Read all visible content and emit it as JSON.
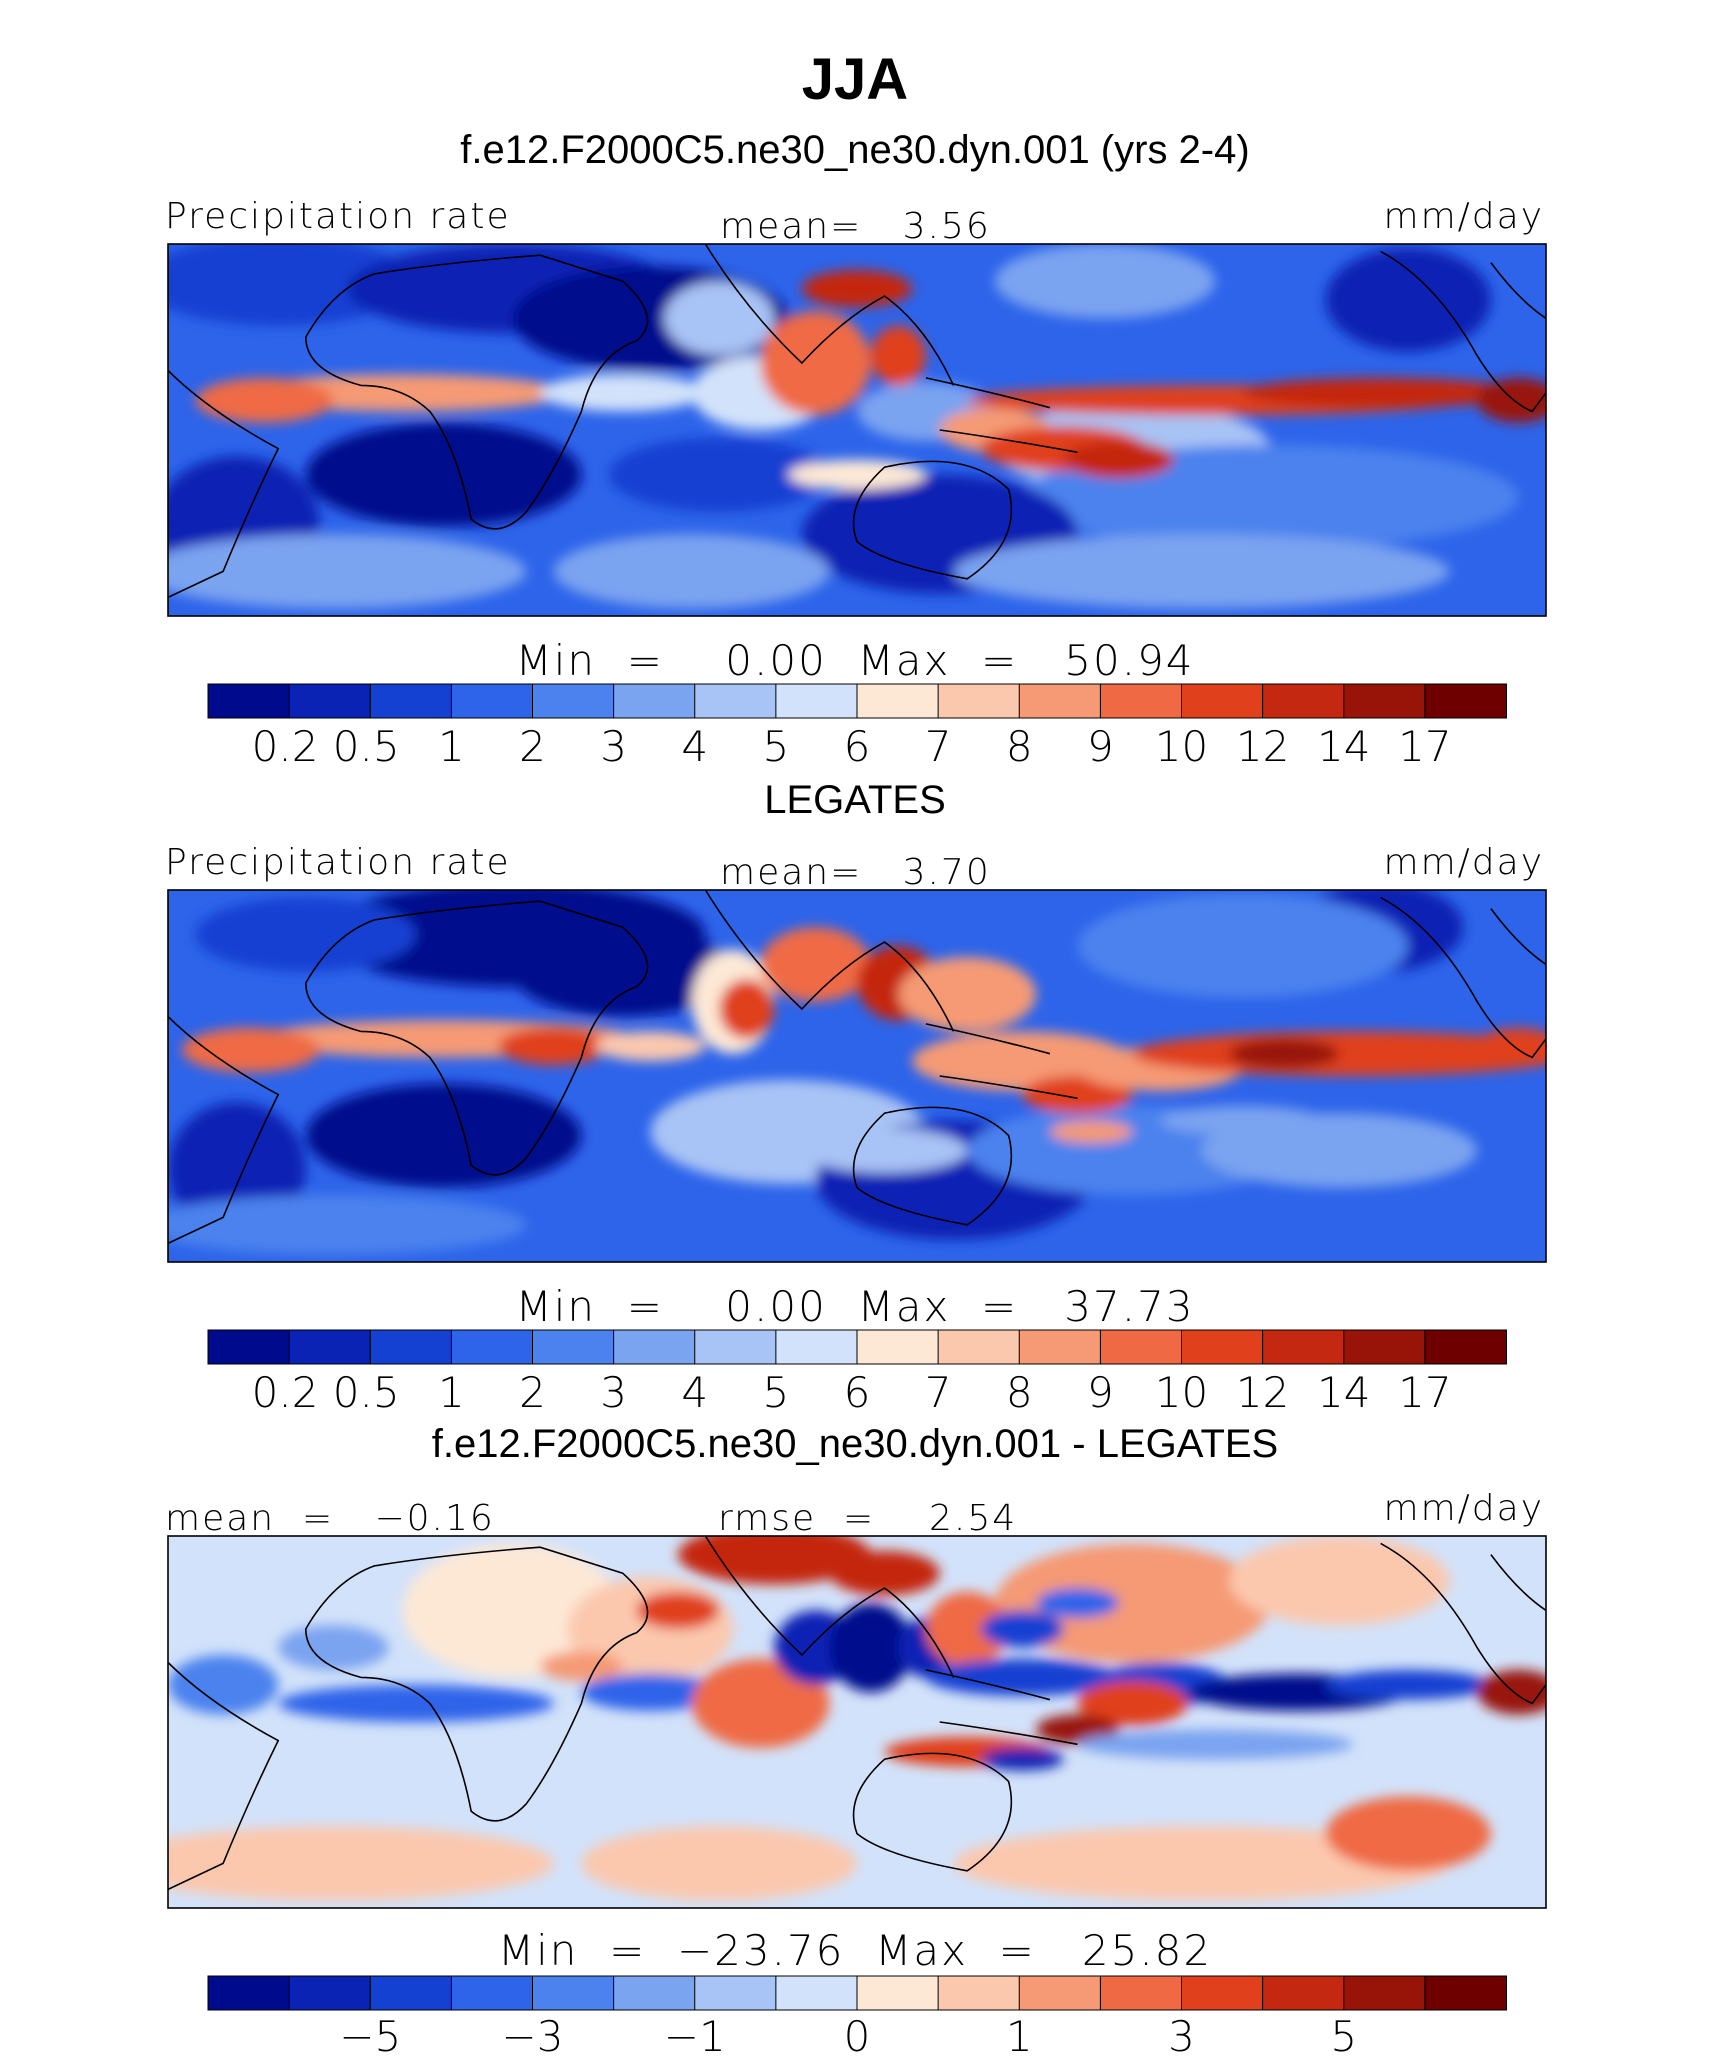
{
  "figure": {
    "title": "JJA",
    "case_title": "f.e12.F2000C5.ne30_ne30.dyn.001 (yrs 2-4)"
  },
  "chart_data": [
    {
      "type": "heatmap",
      "name": "model",
      "left_label": "Precipitation rate",
      "center_label": "mean=   3.56",
      "units": "mm/day",
      "minmax": "Min  =    0.00  Max  =   50.94",
      "colorbar_ticks": [
        "0.2",
        "0.5",
        "1",
        "2",
        "3",
        "4",
        "5",
        "6",
        "7",
        "8",
        "9",
        "10",
        "12",
        "14",
        "17"
      ]
    },
    {
      "type": "heatmap",
      "name": "observations",
      "title": "LEGATES",
      "left_label": "Precipitation rate",
      "center_label": "mean=   3.70",
      "units": "mm/day",
      "minmax": "Min  =    0.00  Max  =   37.73",
      "colorbar_ticks": [
        "0.2",
        "0.5",
        "1",
        "2",
        "3",
        "4",
        "5",
        "6",
        "7",
        "8",
        "9",
        "10",
        "12",
        "14",
        "17"
      ]
    },
    {
      "type": "heatmap",
      "name": "difference",
      "title": "f.e12.F2000C5.ne30_ne30.dyn.001 - LEGATES",
      "left_label": "mean  =   −0.16",
      "center_label": "rmse  =    2.54",
      "units": "mm/day",
      "minmax": "Min  =  −23.76  Max  =   25.82",
      "colorbar_ticks": [
        "−5",
        "−3",
        "−1",
        "0",
        "1",
        "3",
        "5"
      ]
    }
  ],
  "palette": [
    "#000a8c",
    "#0a23b4",
    "#1441d2",
    "#2d64ea",
    "#4b82ee",
    "#7aa3f0",
    "#a8c3f5",
    "#d2e2fa",
    "#fde8d6",
    "#fbc8ae",
    "#f59a74",
    "#ef6a44",
    "#e0401c",
    "#c42810",
    "#981408",
    "#6e0000"
  ]
}
